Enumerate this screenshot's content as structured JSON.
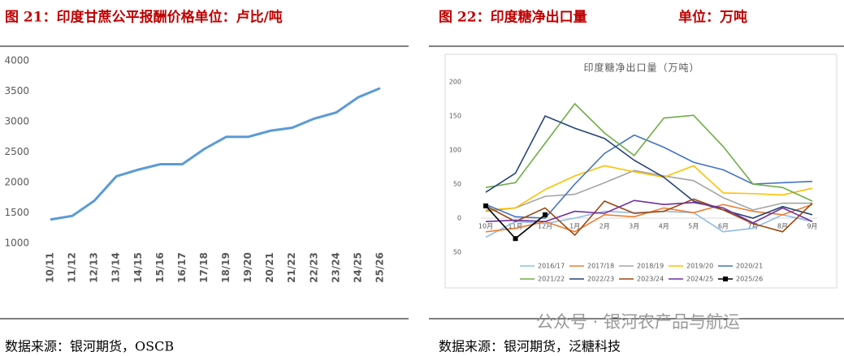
{
  "captions": [
    "图 21：印度甘蔗公平报酬价格单位：卢比/吨",
    "图 22：印度糖净出口量",
    "单位：万吨"
  ],
  "sources": [
    "数据来源：银河期货，OSCB",
    "数据来源：银河期货，泛糖科技"
  ],
  "watermark": "公众号 · 银河农产品与航运",
  "chart_data": [
    {
      "type": "line",
      "categories": [
        "10/11",
        "11/12",
        "12/13",
        "13/14",
        "14/15",
        "15/16",
        "16/17",
        "17/18",
        "18/19",
        "19/20",
        "20/21",
        "21/22",
        "22/23",
        "23/24",
        "24/25",
        "25/26"
      ],
      "series": [
        {
          "name": null,
          "color": "#5b9bd5",
          "values": [
            1390,
            1450,
            1700,
            2100,
            2210,
            2300,
            2300,
            2550,
            2750,
            2750,
            2850,
            2900,
            3050,
            3150,
            3400,
            3550
          ]
        }
      ],
      "ylim": [
        1000,
        4000
      ],
      "yticks": [
        1000,
        1500,
        2000,
        2500,
        3000,
        3500,
        4000
      ]
    },
    {
      "type": "line",
      "title": "印度糖净出口量（万吨）",
      "categories": [
        "10月",
        "11月",
        "12月",
        "1月",
        "2月",
        "3月",
        "4月",
        "5月",
        "6月",
        "7月",
        "8月",
        "9月"
      ],
      "series": [
        {
          "name": "2016/17",
          "color": "#8fbce6",
          "values": [
            -28,
            -5,
            -8,
            0,
            10,
            8,
            10,
            8,
            -20,
            -15,
            5,
            -5
          ]
        },
        {
          "name": "2017/18",
          "color": "#ed7d31",
          "values": [
            -20,
            -15,
            -5,
            -20,
            5,
            2,
            15,
            8,
            20,
            10,
            5,
            20
          ]
        },
        {
          "name": "2018/19",
          "color": "#a5a5a5",
          "values": [
            10,
            15,
            32,
            35,
            52,
            70,
            62,
            55,
            30,
            12,
            22,
            22
          ]
        },
        {
          "name": "2019/20",
          "color": "#ffc000",
          "values": [
            12,
            15,
            42,
            62,
            77,
            68,
            60,
            77,
            37,
            36,
            34,
            44
          ]
        },
        {
          "name": "2020/21",
          "color": "#4472c4",
          "values": [
            20,
            2,
            0,
            50,
            95,
            122,
            104,
            82,
            71,
            50,
            52,
            54
          ]
        },
        {
          "name": "2021/22",
          "color": "#70ad47",
          "values": [
            45,
            52,
            110,
            168,
            125,
            92,
            147,
            151,
            105,
            50,
            45,
            25
          ]
        },
        {
          "name": "2022/23",
          "color": "#264478",
          "values": [
            38,
            66,
            150,
            132,
            117,
            85,
            60,
            25,
            12,
            0,
            17,
            5
          ]
        },
        {
          "name": "2023/24",
          "color": "#9e480e",
          "values": [
            18,
            -5,
            15,
            -25,
            25,
            7,
            10,
            28,
            12,
            -8,
            -20,
            22
          ]
        },
        {
          "name": "2024/25",
          "color": "#7030a0",
          "values": [
            -5,
            -3,
            -5,
            10,
            7,
            26,
            20,
            23,
            15,
            -7,
            15,
            -5
          ]
        },
        {
          "name": "2025/26",
          "color": "#000000",
          "marker": "square",
          "values": [
            18,
            -30,
            5,
            null,
            null,
            null,
            null,
            null,
            null,
            null,
            null,
            null
          ]
        }
      ],
      "ylim": [
        -50,
        200
      ],
      "yticks": [
        {
          "value": -50,
          "label": "50"
        },
        0,
        50,
        100,
        150,
        200
      ],
      "legend": "bottom"
    }
  ]
}
